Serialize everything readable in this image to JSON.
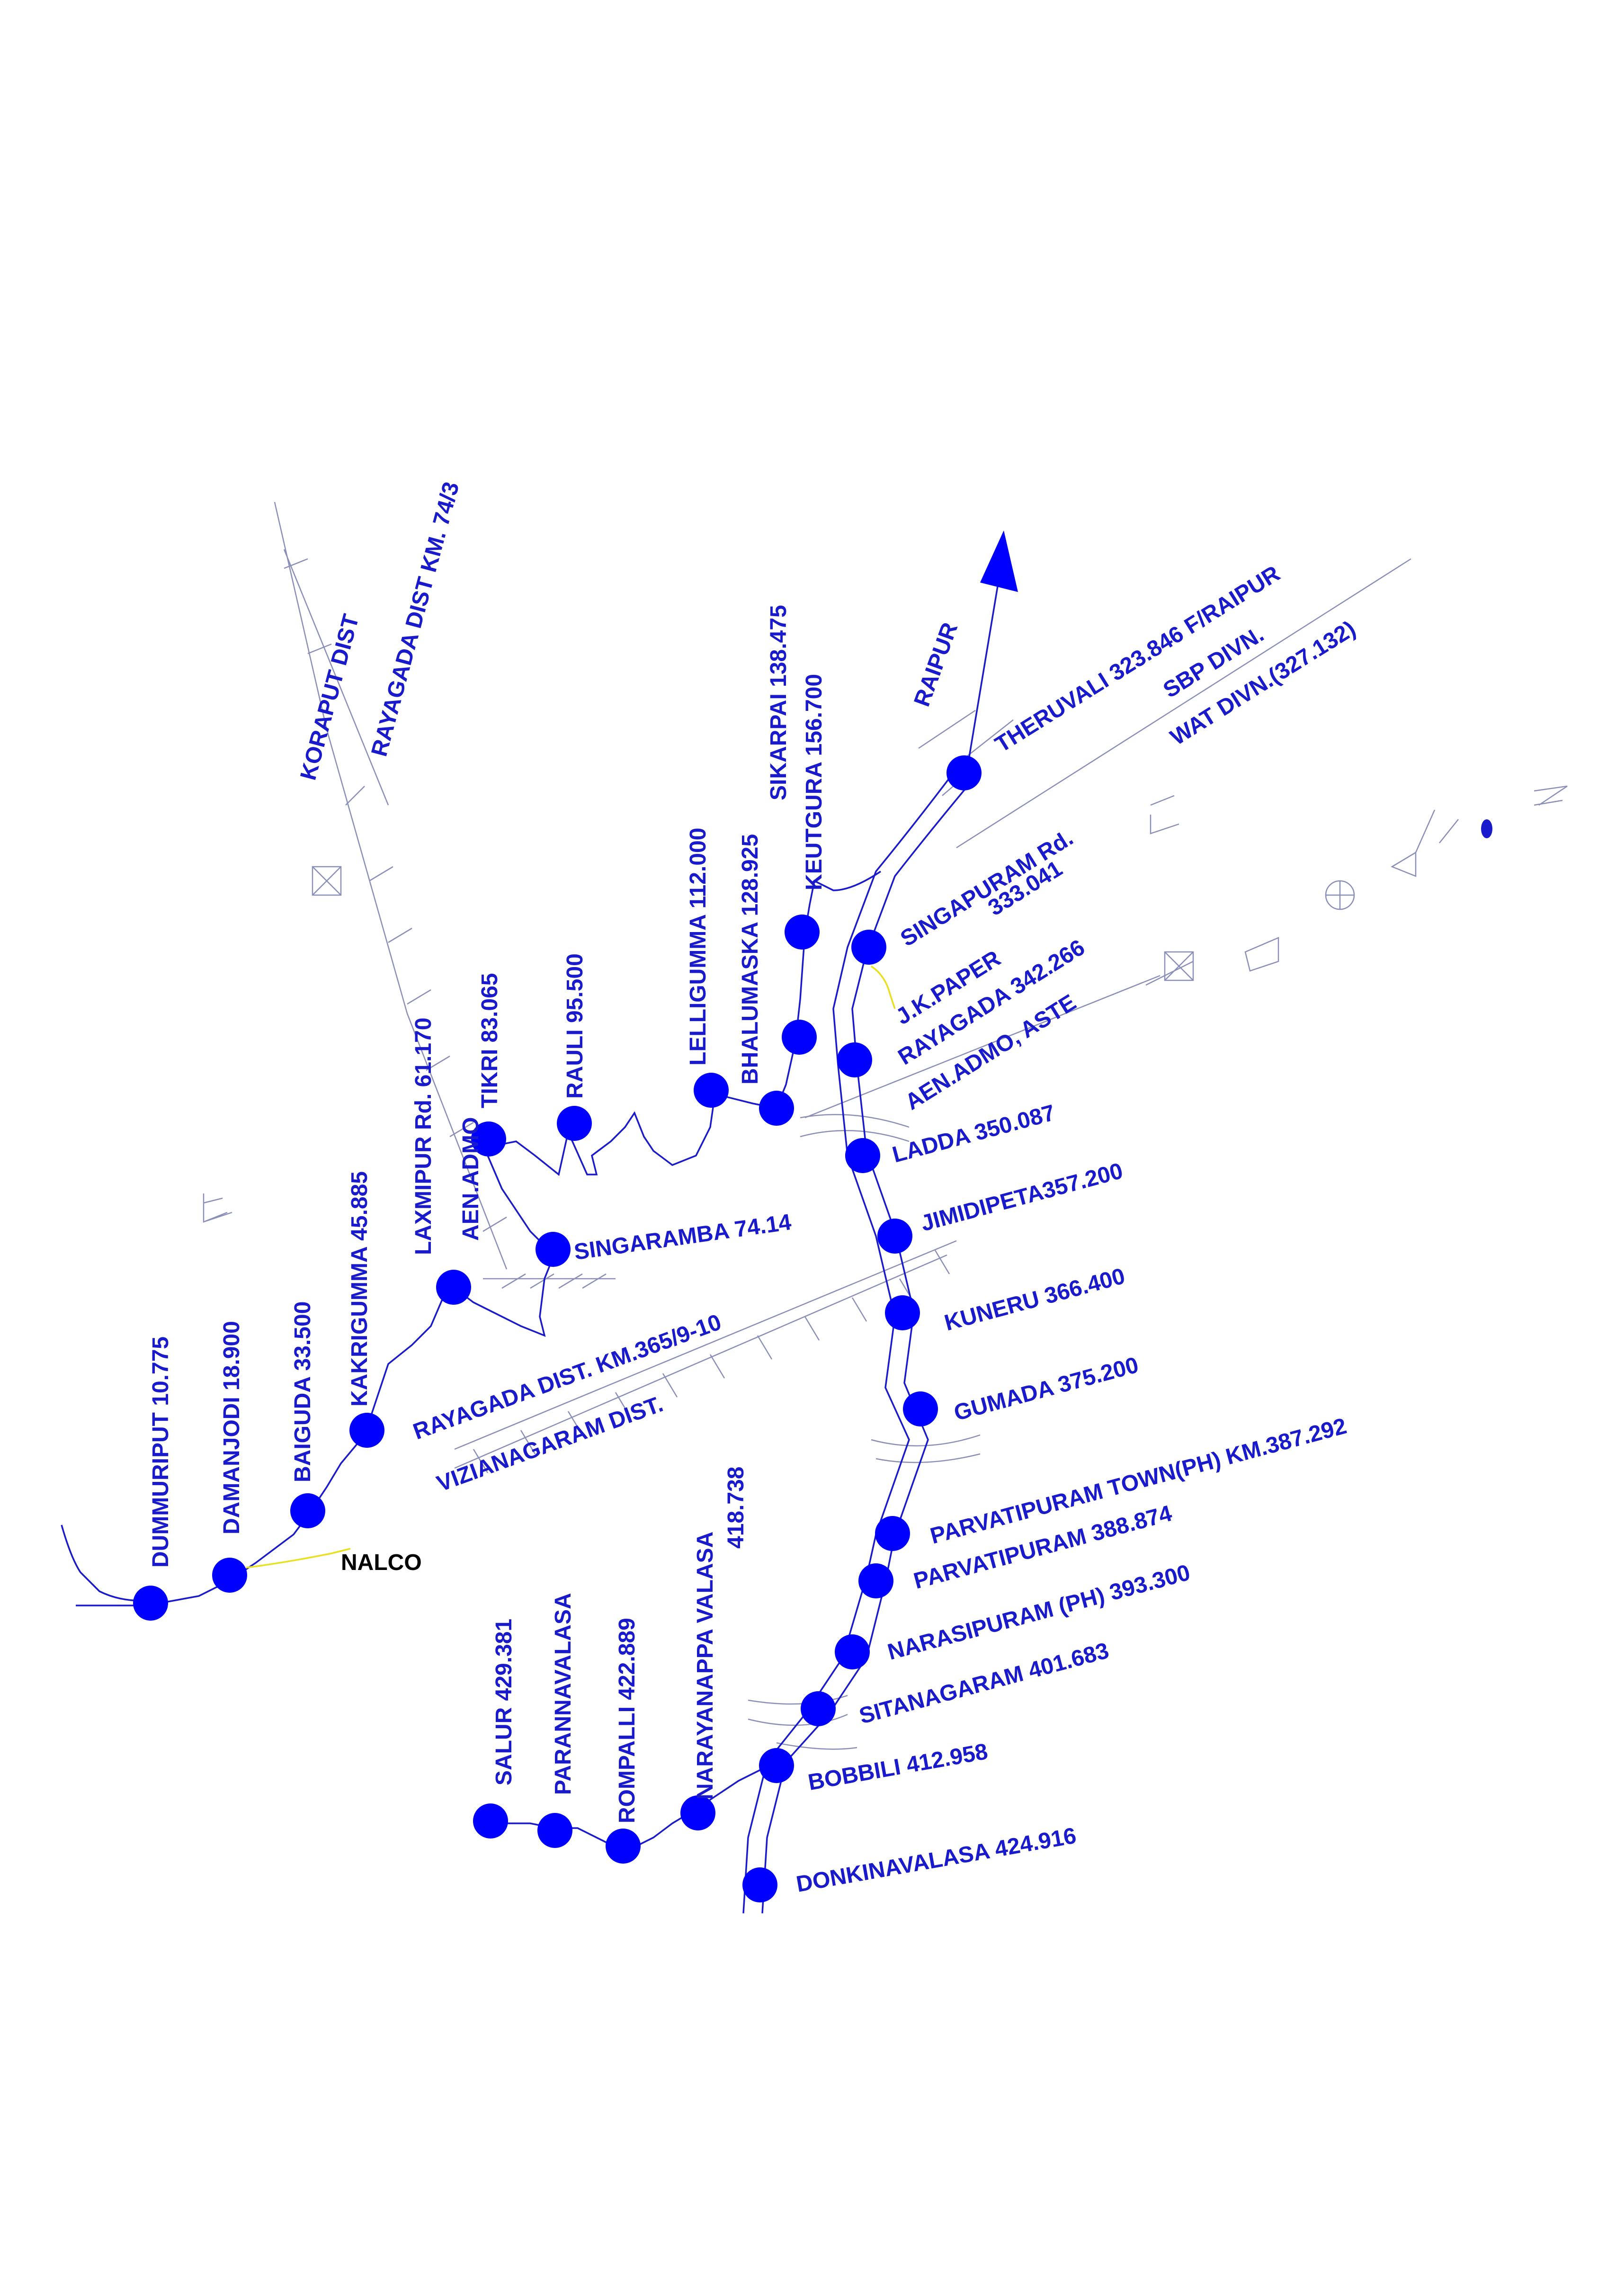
{
  "colors": {
    "station": "#0000ff",
    "label": "#1a1acd",
    "sidings": "#e8e020",
    "boundary": "#8a8fb8",
    "nalco": "#000000"
  },
  "labels": {
    "dummuriput": "DUMMURIPUT 10.775",
    "damanjodi": "DAMANJODI 18.900",
    "baiguda": "BAIGUDA 33.500",
    "kakrigumma": "KAKRIGUMMA 45.885",
    "laxmipur": "LAXMIPUR Rd. 61.170",
    "aen_admo_left": "AEN.ADMO",
    "tikri": "TIKRI 83.065",
    "rauli": "RAULI 95.500",
    "singaramba": "SINGARAMBA 74.14",
    "lelligumma": "LELLIGUMMA 112.000",
    "bhalumaska": "BHALUMASKA 128.925",
    "sikarpai": "SIKARPAI 138.475",
    "keutgura": "KEUTGURA 156.700",
    "raipur": "RAIPUR",
    "theruvali": "THERUVALI 323.846 F/RAIPUR",
    "sbp_divn": "SBP DIVN.",
    "wat_divn": "WAT DIVN.(327.132)",
    "singapuram_1": "SINGAPURAM Rd.",
    "singapuram_2": "333.041",
    "jk_paper": "J.K.PAPER",
    "rayagada": "RAYAGADA 342.266",
    "aen_admo_aste": "AEN.ADMO, ASTE",
    "ladda": "LADDA 350.087",
    "jimidipeta": "JIMIDIPETA357.200",
    "kuneru": "KUNERU 366.400",
    "gumada": "GUMADA 375.200",
    "parvatipuram_town": "PARVATIPURAM TOWN(PH) KM.387.292",
    "parvatipuram": "PARVATIPURAM 388.874",
    "narasipuram": "NARASIPURAM (PH)  393.300",
    "sitanagaram": "SITANAGARAM 401.683",
    "bobbili": "BOBBILI 412.958",
    "donkinavalasa": "DONKINAVALASA 424.916",
    "salur": "SALUR 429.381",
    "parannavalasa": "PARANNAVALASA",
    "rompalli": "ROMPALLI 422.889",
    "narayanappa_1": "NARAYANAPPA VALASA",
    "narayanappa_2": "418.738",
    "nalco": "NALCO",
    "koraput_dist": "KORAPUT DIST",
    "rayagada_dist_km74": "RAYAGADA DIST KM. 74/3",
    "rayagada_dist_km365": "RAYAGADA DIST. KM.365/9-10",
    "vizianagaram_dist": "VIZIANAGARAM DIST."
  }
}
